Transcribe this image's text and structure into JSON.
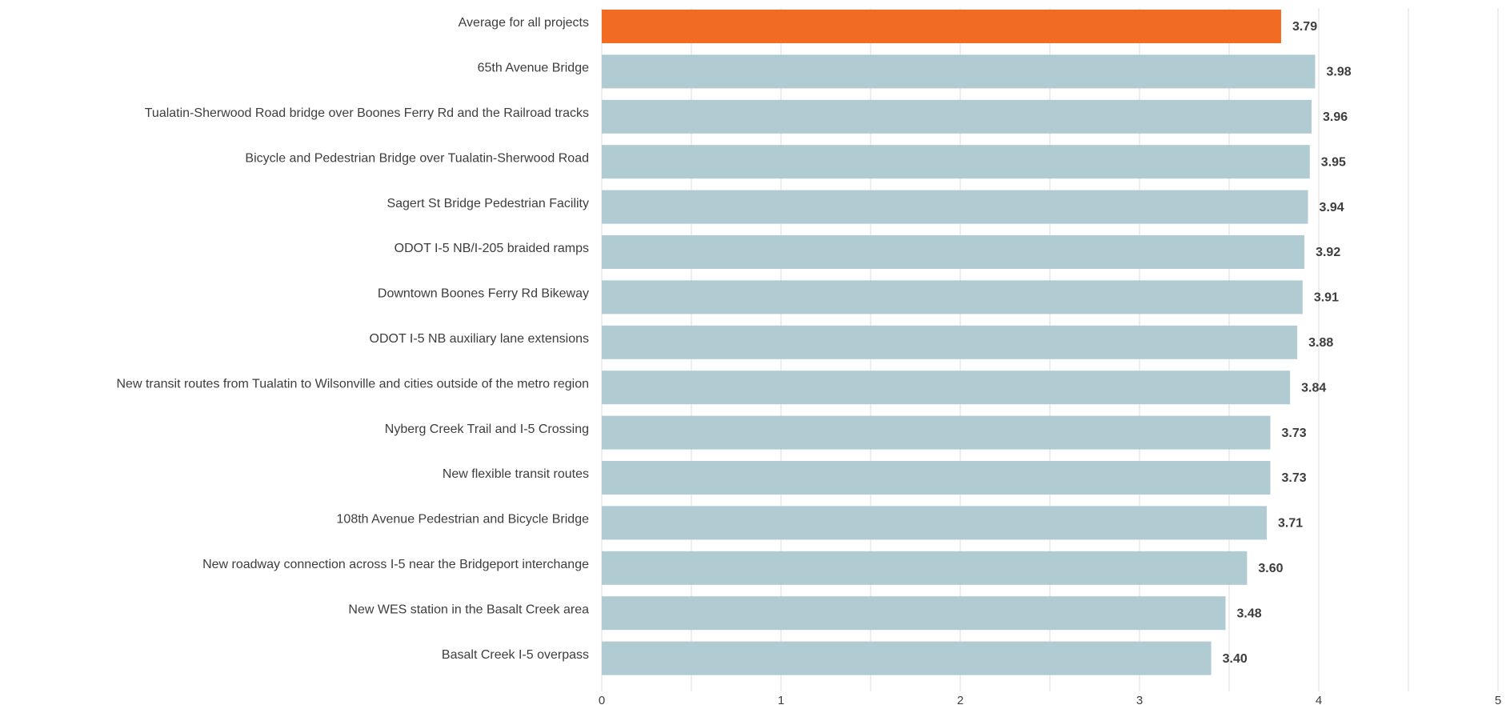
{
  "chart_data": {
    "type": "bar",
    "orientation": "horizontal",
    "categories": [
      "Average for all projects",
      "65th Avenue Bridge",
      "Tualatin-Sherwood Road bridge over Boones Ferry Rd and the Railroad tracks",
      "Bicycle and Pedestrian Bridge over Tualatin-Sherwood Road",
      "Sagert St Bridge Pedestrian Facility",
      "ODOT I-5 NB/I-205 braided ramps",
      "Downtown Boones Ferry Rd Bikeway",
      "ODOT I-5 NB auxiliary lane extensions",
      "New transit routes from Tualatin to Wilsonville and cities outside of the metro region",
      "Nyberg Creek Trail and I-5 Crossing",
      "New flexible transit routes",
      "108th Avenue Pedestrian and Bicycle Bridge",
      "New roadway connection across I-5 near the Bridgeport interchange",
      "New WES station in the Basalt Creek area",
      "Basalt Creek I-5 overpass"
    ],
    "values": [
      3.79,
      3.98,
      3.96,
      3.95,
      3.94,
      3.92,
      3.91,
      3.88,
      3.84,
      3.73,
      3.73,
      3.71,
      3.6,
      3.48,
      3.4
    ],
    "value_labels": [
      "3.79",
      "3.98",
      "3.96",
      "3.95",
      "3.94",
      "3.92",
      "3.91",
      "3.88",
      "3.84",
      "3.73",
      "3.73",
      "3.71",
      "3.60",
      "3.48",
      "3.40"
    ],
    "highlight_index": 0,
    "xlim": [
      0,
      5
    ],
    "xticks": [
      0,
      1,
      2,
      3,
      4,
      5
    ],
    "xtick_labels": [
      "0",
      "1",
      "2",
      "3",
      "4",
      "5"
    ],
    "grid": "vertical, light",
    "legend": "none",
    "title": "",
    "xlabel": "",
    "ylabel": ""
  },
  "colors": {
    "highlight_bar": "#F26B22",
    "bar": "#B0CBD2",
    "gridline": "#DCDCDC",
    "text": "#3D3D3D"
  }
}
